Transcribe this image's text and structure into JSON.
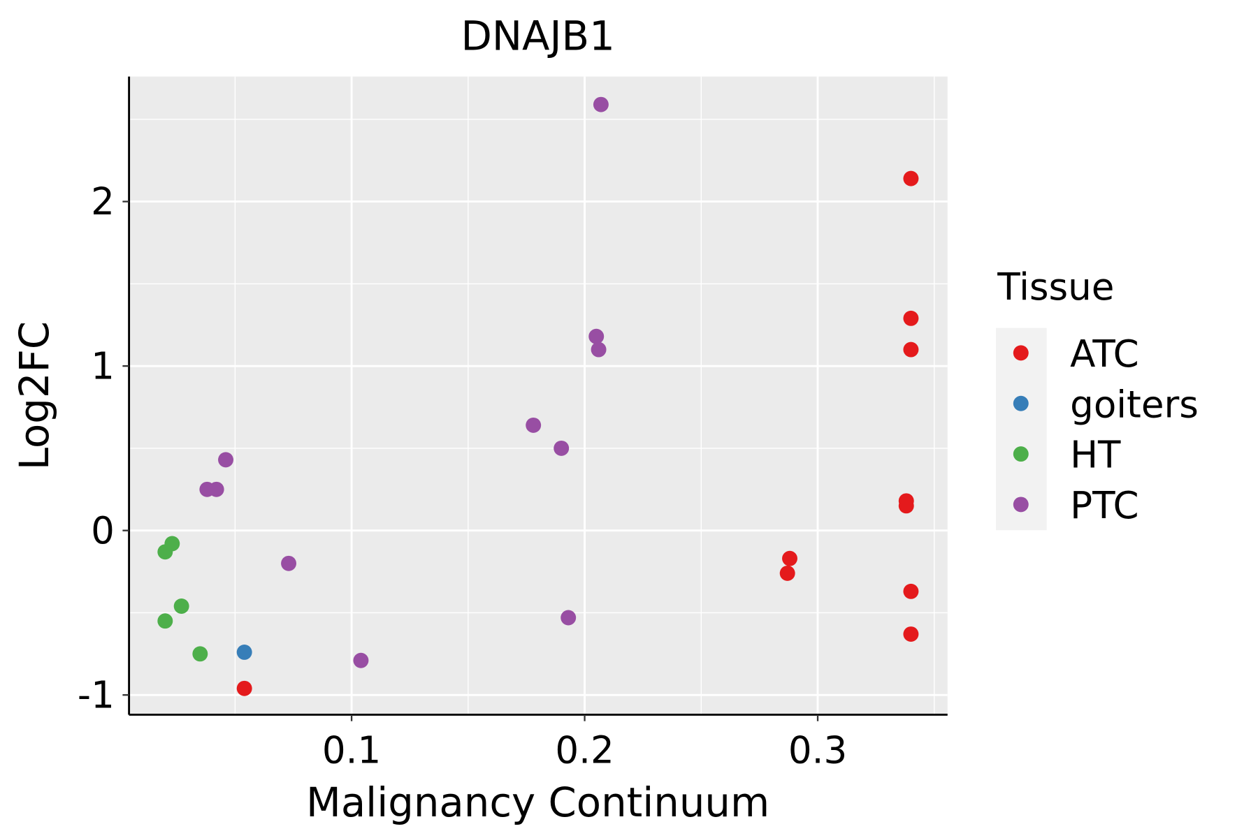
{
  "chart_data": {
    "type": "scatter",
    "title": "DNAJB1",
    "xlabel": "Malignancy Continuum",
    "ylabel": "Log2FC",
    "xlim": [
      0.0045,
      0.3557
    ],
    "ylim": [
      -1.12,
      2.76
    ],
    "xticks": [
      0.1,
      0.2,
      0.3
    ],
    "xtick_labels": [
      "0.1",
      "0.2",
      "0.3"
    ],
    "yticks": [
      -1,
      0,
      1,
      2
    ],
    "ytick_labels": [
      "-1",
      "0",
      "1",
      "2"
    ],
    "grid": true,
    "legend": {
      "title": "Tissue",
      "placement": "right"
    },
    "series": [
      {
        "name": "ATC",
        "color": "#E41A1C",
        "points": [
          [
            0.34,
            2.14
          ],
          [
            0.34,
            1.29
          ],
          [
            0.34,
            1.1
          ],
          [
            0.338,
            0.18
          ],
          [
            0.338,
            0.15
          ],
          [
            0.288,
            -0.17
          ],
          [
            0.287,
            -0.26
          ],
          [
            0.34,
            -0.37
          ],
          [
            0.34,
            -0.63
          ],
          [
            0.054,
            -0.96
          ]
        ]
      },
      {
        "name": "goiters",
        "color": "#377EB8",
        "points": [
          [
            0.054,
            -0.74
          ]
        ]
      },
      {
        "name": "HT",
        "color": "#4DAF4A",
        "points": [
          [
            0.02,
            -0.13
          ],
          [
            0.023,
            -0.08
          ],
          [
            0.027,
            -0.46
          ],
          [
            0.02,
            -0.55
          ],
          [
            0.035,
            -0.75
          ]
        ]
      },
      {
        "name": "PTC",
        "color": "#984EA3",
        "points": [
          [
            0.207,
            2.59
          ],
          [
            0.205,
            1.18
          ],
          [
            0.206,
            1.1
          ],
          [
            0.178,
            0.64
          ],
          [
            0.19,
            0.5
          ],
          [
            0.046,
            0.43
          ],
          [
            0.038,
            0.25
          ],
          [
            0.042,
            0.25
          ],
          [
            0.073,
            -0.2
          ],
          [
            0.193,
            -0.53
          ],
          [
            0.104,
            -0.79
          ]
        ]
      }
    ]
  }
}
